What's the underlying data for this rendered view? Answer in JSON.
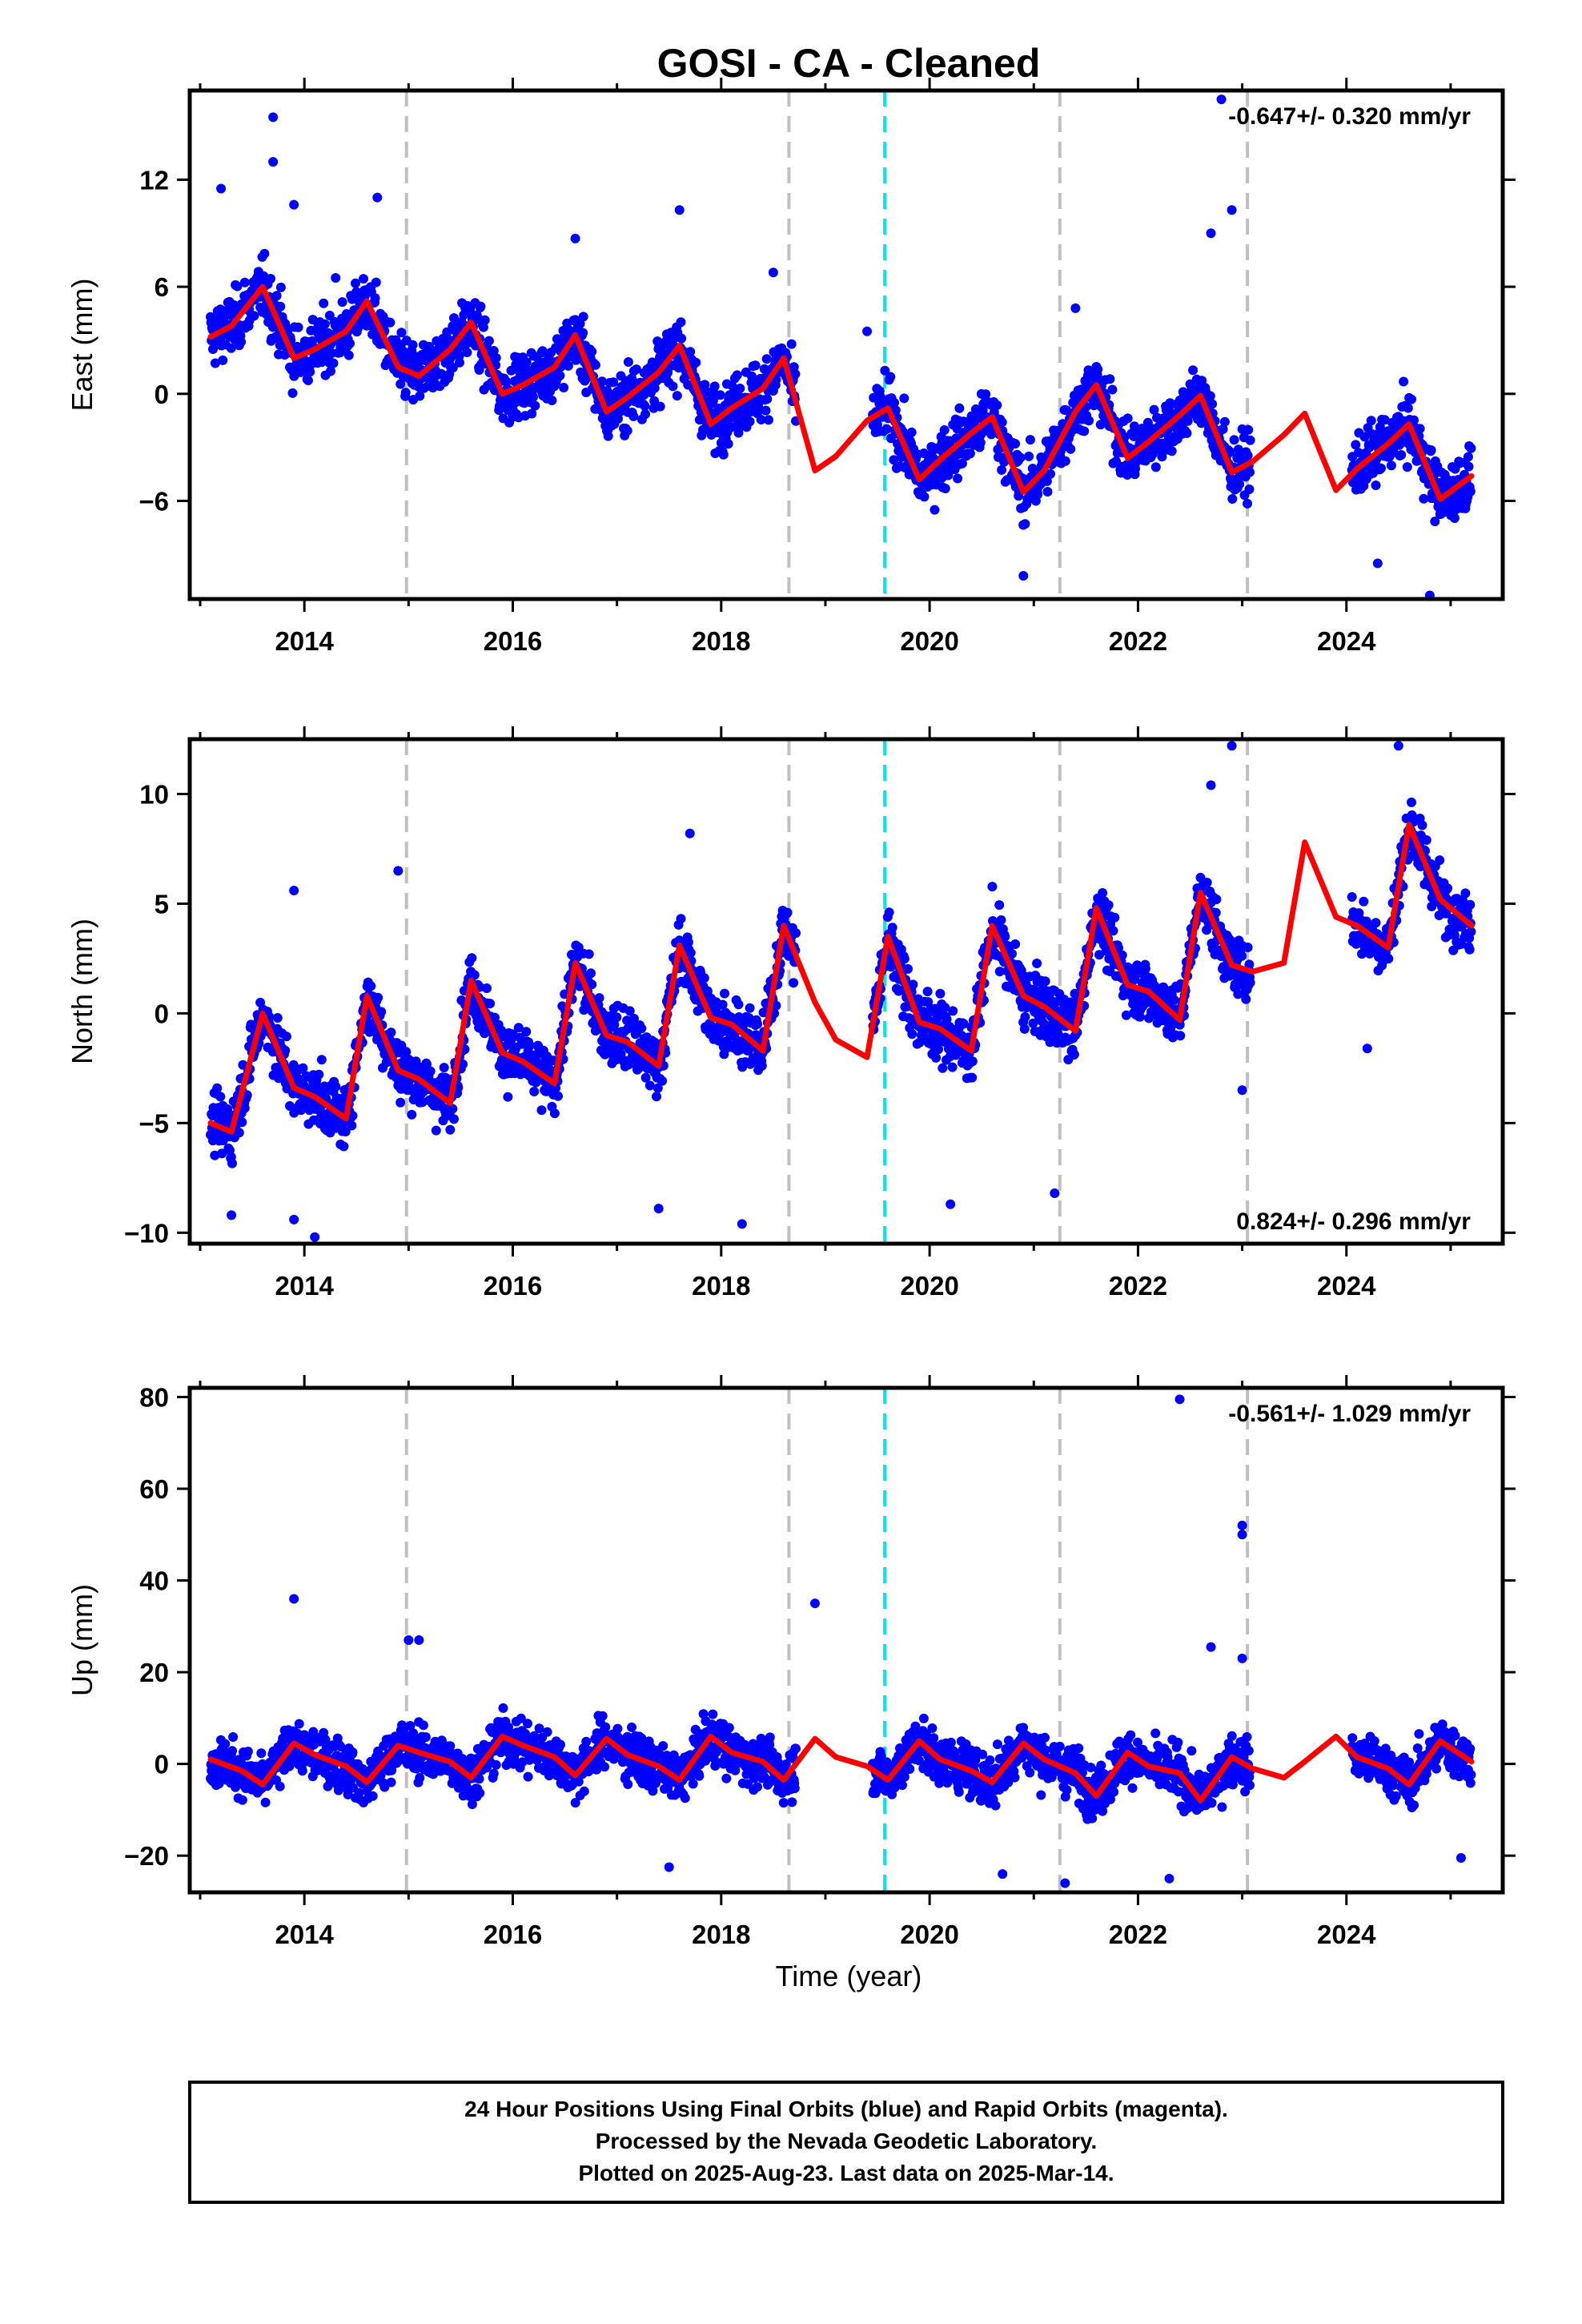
{
  "title": "GOSI  - CA - Cleaned",
  "xlabel": "Time (year)",
  "x_ticks": [
    "2014",
    "2016",
    "2018",
    "2020",
    "2022",
    "2024"
  ],
  "footer": {
    "line1": "24 Hour Positions Using Final Orbits (blue) and Rapid Orbits (magenta).",
    "line2": "Processed by the Nevada Geodetic Laboratory.",
    "line3": "Plotted on 2025-Aug-23. Last data on 2025-Mar-14."
  },
  "colors": {
    "points": "#0000ff",
    "model": "#ff0000",
    "event_line": "#c0c0c0",
    "antenna_line": "#00e5ee",
    "frame": "#000000"
  },
  "chart_data": [
    {
      "type": "scatter",
      "panel": "east",
      "ylabel": "East (mm)",
      "rate": "-0.647+/- 0.320 mm/yr",
      "rate_position": "top-right",
      "xlim": [
        2012.9,
        2025.5
      ],
      "ylim": [
        -11.5,
        17.0
      ],
      "y_ticks": [
        "12",
        "6",
        "0",
        "−6"
      ],
      "y_tick_values": [
        12,
        6,
        0,
        -6
      ],
      "event_lines_gray": [
        2014.98,
        2018.65,
        2021.25,
        2023.05
      ],
      "event_lines_cyan": [
        2019.57
      ],
      "model_curve": {
        "x": [
          2013.1,
          2013.3,
          2013.6,
          2013.9,
          2014.1,
          2014.4,
          2014.6,
          2014.9,
          2015.1,
          2015.4,
          2015.6,
          2015.9,
          2016.1,
          2016.4,
          2016.6,
          2016.9,
          2017.1,
          2017.4,
          2017.6,
          2017.9,
          2018.1,
          2018.4,
          2018.6,
          2018.9,
          2019.1,
          2019.4,
          2019.6,
          2019.9,
          2020.1,
          2020.4,
          2020.6,
          2020.9,
          2021.1,
          2021.4,
          2021.6,
          2021.9,
          2022.1,
          2022.4,
          2022.6,
          2022.9,
          2023.1,
          2023.4,
          2023.6,
          2023.9,
          2024.1,
          2024.4,
          2024.6,
          2024.9,
          2025.2
        ],
        "y": [
          3.2,
          3.8,
          6.0,
          2.0,
          2.5,
          3.5,
          5.2,
          1.5,
          1.0,
          2.5,
          4.0,
          0.0,
          0.5,
          1.5,
          3.3,
          -1.0,
          -0.2,
          1.2,
          2.7,
          -1.7,
          -0.8,
          0.3,
          2.0,
          -4.3,
          -3.5,
          -1.5,
          -0.8,
          -4.8,
          -3.7,
          -2.2,
          -1.3,
          -5.5,
          -4.3,
          -1.0,
          0.5,
          -3.6,
          -2.7,
          -1.2,
          -0.1,
          -4.4,
          -3.8,
          -2.3,
          -1.1,
          -5.4,
          -4.2,
          -2.8,
          -1.7,
          -5.9,
          -4.6
        ]
      },
      "points": [
        {
          "x": 2013.2,
          "y": 11.5
        },
        {
          "x": 2013.7,
          "y": 15.5
        },
        {
          "x": 2013.7,
          "y": 13.0
        },
        {
          "x": 2013.9,
          "y": 10.6
        },
        {
          "x": 2014.3,
          "y": 6.5
        },
        {
          "x": 2014.7,
          "y": 11.0
        },
        {
          "x": 2016.6,
          "y": 8.7
        },
        {
          "x": 2017.6,
          "y": 10.3
        },
        {
          "x": 2018.5,
          "y": 6.8
        },
        {
          "x": 2022.7,
          "y": 9.0
        },
        {
          "x": 2022.9,
          "y": 10.3
        },
        {
          "x": 2022.8,
          "y": 16.5
        },
        {
          "x": 2020.9,
          "y": -10.2
        },
        {
          "x": 2024.3,
          "y": -9.5
        },
        {
          "x": 2024.8,
          "y": -11.3
        },
        {
          "x": 2019.4,
          "y": 3.5
        },
        {
          "x": 2021.4,
          "y": 4.8
        }
      ]
    },
    {
      "type": "scatter",
      "panel": "north",
      "ylabel": "North (mm)",
      "rate": "0.824+/- 0.296 mm/yr",
      "rate_position": "bottom-right",
      "xlim": [
        2012.9,
        2025.5
      ],
      "ylim": [
        -10.5,
        12.5
      ],
      "y_ticks": [
        "10",
        "5",
        "0",
        "−5",
        "−10"
      ],
      "y_tick_values": [
        10,
        5,
        0,
        -5,
        -10
      ],
      "event_lines_gray": [
        2014.98,
        2018.65,
        2021.25,
        2023.05
      ],
      "event_lines_cyan": [
        2019.57
      ],
      "model_curve": {
        "x": [
          2013.1,
          2013.3,
          2013.6,
          2013.9,
          2014.1,
          2014.4,
          2014.6,
          2014.9,
          2015.1,
          2015.4,
          2015.6,
          2015.9,
          2016.1,
          2016.4,
          2016.6,
          2016.9,
          2017.1,
          2017.4,
          2017.6,
          2017.9,
          2018.1,
          2018.4,
          2018.6,
          2018.9,
          2019.1,
          2019.4,
          2019.6,
          2019.9,
          2020.1,
          2020.4,
          2020.6,
          2020.9,
          2021.1,
          2021.4,
          2021.6,
          2021.9,
          2022.1,
          2022.4,
          2022.6,
          2022.9,
          2023.1,
          2023.4,
          2023.6,
          2023.9,
          2024.1,
          2024.4,
          2024.6,
          2024.9,
          2025.2
        ],
        "y": [
          -5.0,
          -5.4,
          0.0,
          -3.4,
          -3.8,
          -4.8,
          0.8,
          -2.6,
          -3.0,
          -4.1,
          1.5,
          -1.8,
          -2.2,
          -3.2,
          2.3,
          -1.0,
          -1.3,
          -2.4,
          3.1,
          -0.2,
          -0.5,
          -1.7,
          4.0,
          0.5,
          -1.2,
          -2.0,
          3.5,
          -0.4,
          -0.7,
          -1.7,
          4.0,
          0.8,
          0.3,
          -0.8,
          4.8,
          1.3,
          1.0,
          -0.3,
          5.5,
          2.2,
          1.9,
          2.3,
          7.8,
          4.4,
          4.0,
          3.0,
          8.6,
          5.2,
          4.0
        ]
      },
      "points": [
        {
          "x": 2013.3,
          "y": -9.2
        },
        {
          "x": 2013.9,
          "y": -9.4
        },
        {
          "x": 2014.1,
          "y": -10.2
        },
        {
          "x": 2013.9,
          "y": 5.6
        },
        {
          "x": 2014.9,
          "y": 6.5
        },
        {
          "x": 2017.7,
          "y": 8.2
        },
        {
          "x": 2017.4,
          "y": -8.9
        },
        {
          "x": 2018.2,
          "y": -9.6
        },
        {
          "x": 2020.2,
          "y": -8.7
        },
        {
          "x": 2021.2,
          "y": -8.2
        },
        {
          "x": 2022.9,
          "y": 12.2
        },
        {
          "x": 2022.7,
          "y": 10.4
        },
        {
          "x": 2024.5,
          "y": 12.2
        },
        {
          "x": 2024.2,
          "y": -1.6
        },
        {
          "x": 2023.0,
          "y": -3.5
        }
      ]
    },
    {
      "type": "scatter",
      "panel": "up",
      "ylabel": "Up (mm)",
      "rate": "-0.561+/- 1.029 mm/yr",
      "rate_position": "top-right",
      "xlim": [
        2012.9,
        2025.5
      ],
      "ylim": [
        -28,
        82
      ],
      "y_ticks": [
        "80",
        "60",
        "40",
        "20",
        "0",
        "−20"
      ],
      "y_tick_values": [
        80,
        60,
        40,
        20,
        0,
        -20
      ],
      "event_lines_gray": [
        2014.98,
        2018.65,
        2021.25,
        2023.05
      ],
      "event_lines_cyan": [
        2019.57
      ],
      "model_curve": {
        "x": [
          2013.1,
          2013.4,
          2013.6,
          2013.9,
          2014.1,
          2014.4,
          2014.6,
          2014.9,
          2015.1,
          2015.4,
          2015.6,
          2015.9,
          2016.1,
          2016.4,
          2016.6,
          2016.9,
          2017.1,
          2017.4,
          2017.6,
          2017.9,
          2018.1,
          2018.4,
          2018.6,
          2018.9,
          2019.1,
          2019.4,
          2019.6,
          2019.9,
          2020.1,
          2020.4,
          2020.6,
          2020.9,
          2021.1,
          2021.4,
          2021.6,
          2021.9,
          2022.1,
          2022.4,
          2022.6,
          2022.9,
          2023.1,
          2023.4,
          2023.6,
          2023.9,
          2024.1,
          2024.4,
          2024.6,
          2024.9,
          2025.2
        ],
        "y": [
          1.0,
          -1.5,
          -4.5,
          4.5,
          2.0,
          -0.5,
          -4.0,
          4.0,
          2.5,
          0.5,
          -3.0,
          6.0,
          4.0,
          1.5,
          -2.5,
          5.5,
          2.0,
          -0.5,
          -3.5,
          6.0,
          2.5,
          0.5,
          -3.5,
          5.5,
          1.5,
          -0.5,
          -3.5,
          5.0,
          1.0,
          -1.5,
          -4.0,
          4.5,
          1.0,
          -2.0,
          -7.0,
          2.5,
          -0.5,
          -2.0,
          -8.0,
          1.5,
          -1.0,
          -3.0,
          0.5,
          6.0,
          1.5,
          -1.0,
          -4.5,
          5.0,
          0.5
        ]
      },
      "points": [
        {
          "x": 2013.9,
          "y": 36.0
        },
        {
          "x": 2015.0,
          "y": 27.0
        },
        {
          "x": 2015.1,
          "y": 27.0
        },
        {
          "x": 2018.9,
          "y": 35.0
        },
        {
          "x": 2023.0,
          "y": 50.0
        },
        {
          "x": 2023.0,
          "y": 52.0
        },
        {
          "x": 2022.4,
          "y": 79.5
        },
        {
          "x": 2017.5,
          "y": -22.5
        },
        {
          "x": 2020.7,
          "y": -24.0
        },
        {
          "x": 2021.3,
          "y": -26.0
        },
        {
          "x": 2022.3,
          "y": -25.0
        },
        {
          "x": 2025.1,
          "y": -20.5
        },
        {
          "x": 2022.7,
          "y": 25.5
        },
        {
          "x": 2023.0,
          "y": 23.0
        }
      ]
    }
  ]
}
